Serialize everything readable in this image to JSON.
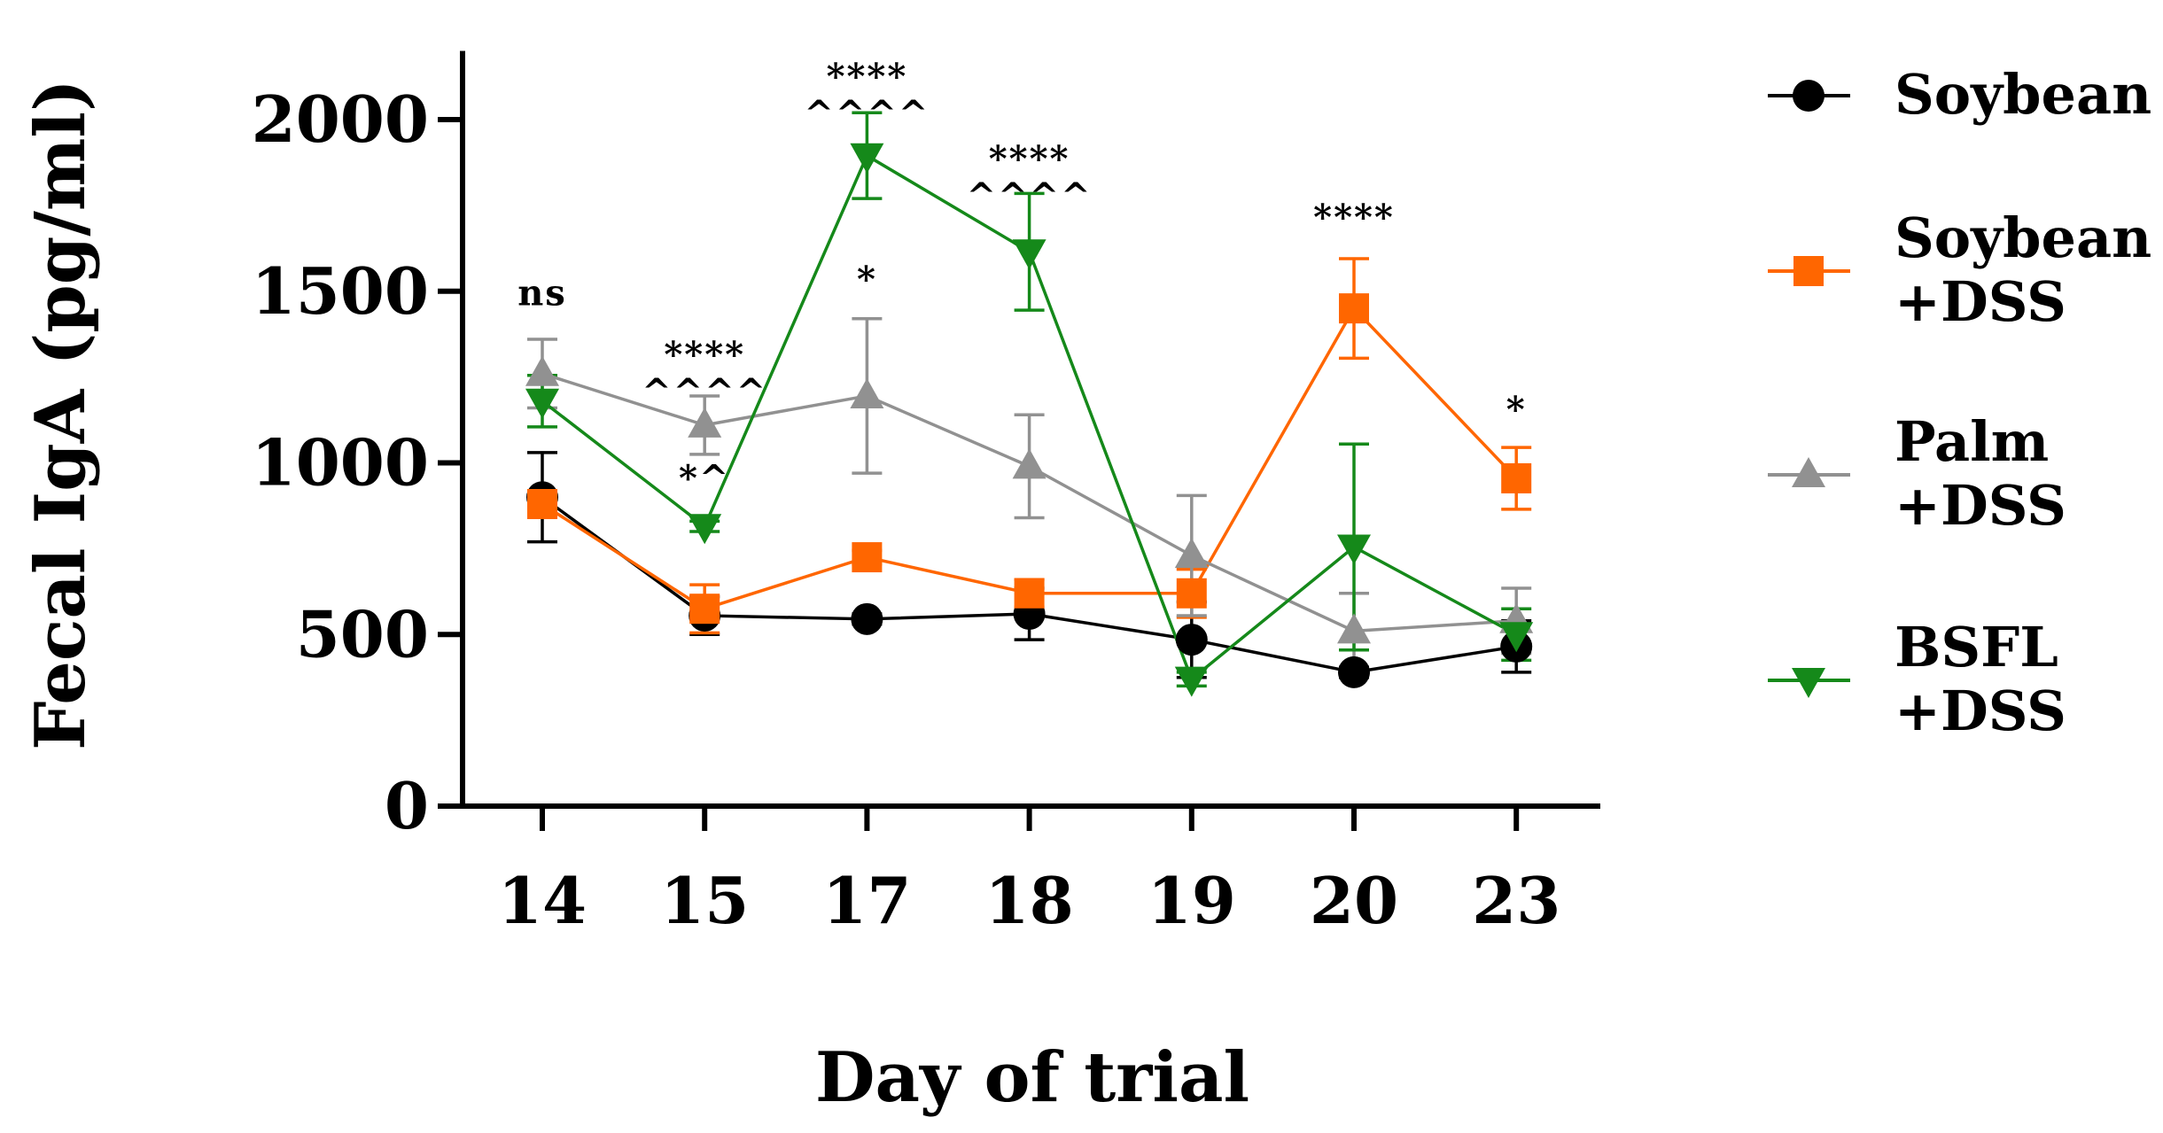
{
  "chart_data": {
    "type": "line",
    "xlabel": "Day of trial",
    "ylabel": "Fecal IgA (pg/ml)",
    "categories": [
      "14",
      "15",
      "17",
      "18",
      "19",
      "20",
      "23"
    ],
    "ylim": [
      0,
      2200
    ],
    "yticks": [
      0,
      500,
      1000,
      1500,
      2000
    ],
    "legend_position": "right",
    "series": [
      {
        "name": "Soybean",
        "legend_lines": [
          "Soybean"
        ],
        "color": "#000000",
        "marker": "circle",
        "values": [
          900,
          555,
          545,
          560,
          485,
          390,
          465
        ],
        "errors": [
          130,
          55,
          15,
          75,
          110,
          15,
          75
        ]
      },
      {
        "name": "Soybean +DSS",
        "legend_lines": [
          "Soybean",
          "+DSS"
        ],
        "color": "#ff6600",
        "marker": "square",
        "values": [
          880,
          575,
          725,
          620,
          620,
          1450,
          955
        ],
        "errors": [
          30,
          70,
          20,
          40,
          70,
          145,
          90
        ]
      },
      {
        "name": "Palm +DSS",
        "legend_lines": [
          "Palm",
          "+DSS"
        ],
        "color": "#919191",
        "marker": "triangle-up",
        "values": [
          1260,
          1110,
          1195,
          990,
          730,
          510,
          540
        ],
        "errors": [
          100,
          85,
          225,
          150,
          175,
          110,
          95
        ]
      },
      {
        "name": "BSFL +DSS",
        "legend_lines": [
          "BSFL",
          "+DSS"
        ],
        "color": "#15891a",
        "marker": "triangle-down",
        "values": [
          1180,
          815,
          1895,
          1615,
          370,
          755,
          500
        ],
        "errors": [
          75,
          15,
          125,
          170,
          20,
          300,
          75
        ]
      }
    ],
    "annotations": [
      {
        "category": "14",
        "lines": [
          "ns"
        ],
        "anchor_value": 1460
      },
      {
        "category": "15",
        "lines": [
          "****",
          "^^^^"
        ],
        "anchor_value": 1280
      },
      {
        "category": "15",
        "lines": [
          "*^"
        ],
        "anchor_value": 920
      },
      {
        "category": "17",
        "lines": [
          "****",
          "^^^^"
        ],
        "anchor_value": 2090
      },
      {
        "category": "17",
        "lines": [
          "*"
        ],
        "anchor_value": 1500
      },
      {
        "category": "18",
        "lines": [
          "****",
          "^^^^"
        ],
        "anchor_value": 1850
      },
      {
        "category": "20",
        "lines": [
          "****"
        ],
        "anchor_value": 1680
      },
      {
        "category": "23",
        "lines": [
          "*"
        ],
        "anchor_value": 1120
      }
    ]
  }
}
